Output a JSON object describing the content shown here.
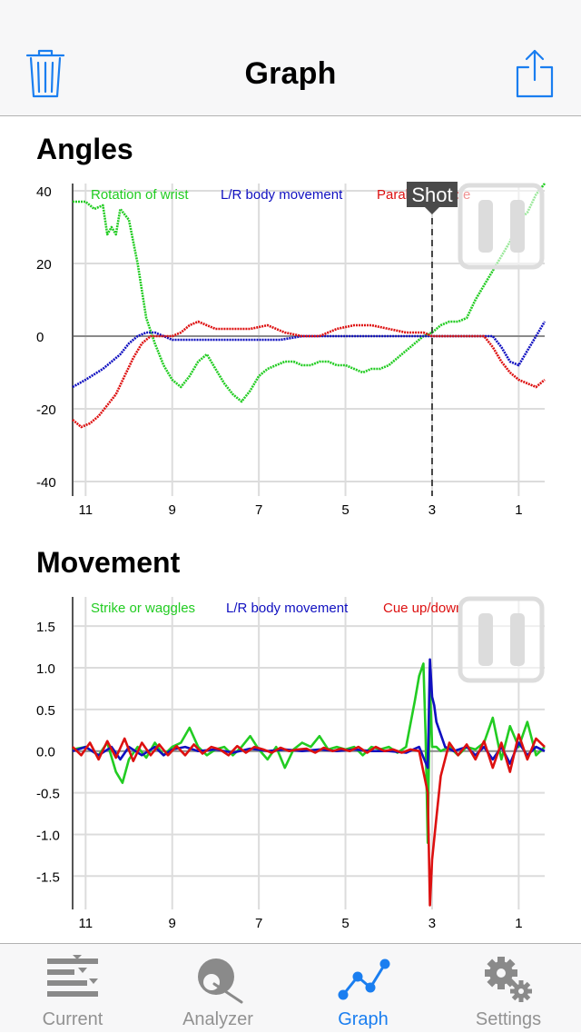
{
  "nav": {
    "title": "Graph",
    "left_icon": "trash-icon",
    "right_icon": "share-icon"
  },
  "sections": {
    "angles_title": "Angles",
    "movement_title": "Movement"
  },
  "colors": {
    "accent": "#1a7ef0",
    "green": "#22cc22",
    "blue": "#1010c0",
    "red": "#dd1010",
    "grid": "#dcdcdc",
    "axis": "#555555"
  },
  "shot_marker": {
    "label": "Shot",
    "x": 3
  },
  "chart_data": [
    {
      "type": "line",
      "title": "Angles",
      "xlim": [
        11.3,
        0.4
      ],
      "ylim": [
        -44,
        42
      ],
      "x_ticks": [
        "11",
        "9",
        "7",
        "5",
        "3",
        "1"
      ],
      "y_ticks": [
        "40",
        "20",
        "0",
        "-20",
        "-40"
      ],
      "grid": true,
      "legend_position": "top",
      "series": [
        {
          "name": "Rotation of wrist",
          "color": "#22cc22",
          "x": [
            11.3,
            11.0,
            10.8,
            10.6,
            10.5,
            10.4,
            10.3,
            10.2,
            10.0,
            9.8,
            9.6,
            9.4,
            9.2,
            9.0,
            8.8,
            8.6,
            8.4,
            8.2,
            8.0,
            7.8,
            7.6,
            7.4,
            7.2,
            7.0,
            6.8,
            6.6,
            6.4,
            6.2,
            6.0,
            5.8,
            5.6,
            5.4,
            5.2,
            5.0,
            4.8,
            4.6,
            4.4,
            4.2,
            4.0,
            3.8,
            3.6,
            3.4,
            3.2,
            3.0,
            2.8,
            2.6,
            2.4,
            2.2,
            2.0,
            1.8,
            1.6,
            1.4,
            1.2,
            1.0,
            0.8,
            0.6,
            0.4
          ],
          "y": [
            37,
            37,
            35,
            36,
            28,
            30,
            28,
            35,
            32,
            20,
            5,
            -2,
            -8,
            -12,
            -14,
            -11,
            -7,
            -5,
            -9,
            -13,
            -16,
            -18,
            -15,
            -11,
            -9,
            -8,
            -7,
            -7,
            -8,
            -8,
            -7,
            -7,
            -8,
            -8,
            -9,
            -10,
            -9,
            -9,
            -8,
            -6,
            -4,
            -2,
            0,
            1,
            3,
            4,
            4,
            5,
            10,
            14,
            18,
            22,
            26,
            32,
            34,
            39,
            42
          ]
        },
        {
          "name": "L/R body movement",
          "color": "#1010c0",
          "x": [
            11.3,
            11.0,
            10.6,
            10.2,
            10.0,
            9.8,
            9.6,
            9.4,
            9.2,
            9.0,
            8.5,
            8.0,
            7.5,
            7.0,
            6.5,
            6.0,
            5.5,
            5.0,
            4.5,
            4.0,
            3.5,
            3.0,
            2.8,
            2.6,
            2.4,
            2.2,
            2.0,
            1.8,
            1.6,
            1.4,
            1.2,
            1.0,
            0.8,
            0.6,
            0.4
          ],
          "y": [
            -14,
            -12,
            -9,
            -5,
            -2,
            0,
            1,
            1,
            0,
            -1,
            -1,
            -1,
            -1,
            -1,
            -1,
            0,
            0,
            0,
            0,
            0,
            0,
            0,
            0,
            0,
            0,
            0,
            0,
            0,
            0,
            -3,
            -7,
            -8,
            -4,
            0,
            4
          ]
        },
        {
          "name": "Parallel to table",
          "color": "#dd1010",
          "x": [
            11.3,
            11.1,
            10.9,
            10.7,
            10.5,
            10.3,
            10.1,
            9.9,
            9.7,
            9.5,
            9.3,
            9.1,
            9.0,
            8.8,
            8.6,
            8.4,
            8.0,
            7.6,
            7.2,
            6.8,
            6.4,
            6.0,
            5.6,
            5.2,
            4.8,
            4.4,
            4.0,
            3.6,
            3.2,
            3.0,
            2.6,
            2.2,
            1.8,
            1.6,
            1.4,
            1.2,
            1.0,
            0.8,
            0.6,
            0.4
          ],
          "y": [
            -23,
            -25,
            -24,
            -22,
            -19,
            -16,
            -11,
            -6,
            -2,
            0,
            0,
            0,
            0,
            1,
            3,
            4,
            2,
            2,
            2,
            3,
            1,
            0,
            0,
            2,
            3,
            3,
            2,
            1,
            1,
            0,
            0,
            0,
            0,
            -3,
            -7,
            -10,
            -12,
            -13,
            -14,
            -12
          ]
        }
      ]
    },
    {
      "type": "line",
      "title": "Movement",
      "xlim": [
        11.3,
        0.4
      ],
      "ylim": [
        -1.9,
        1.85
      ],
      "x_ticks": [
        "11",
        "9",
        "7",
        "5",
        "3",
        "1"
      ],
      "y_ticks": [
        "1.5",
        "1.0",
        "0.5",
        "0.0",
        "-0.5",
        "-1.0",
        "-1.5"
      ],
      "grid": true,
      "legend_position": "top",
      "series": [
        {
          "name": "Strike or waggles",
          "color": "#22cc22",
          "x": [
            11.3,
            11.0,
            10.7,
            10.5,
            10.3,
            10.15,
            10.0,
            9.8,
            9.6,
            9.4,
            9.2,
            9.0,
            8.8,
            8.6,
            8.4,
            8.2,
            8.0,
            7.8,
            7.6,
            7.4,
            7.2,
            7.0,
            6.8,
            6.6,
            6.4,
            6.2,
            6.0,
            5.8,
            5.6,
            5.4,
            5.2,
            5.0,
            4.8,
            4.6,
            4.4,
            4.2,
            4.0,
            3.8,
            3.6,
            3.4,
            3.3,
            3.2,
            3.15,
            3.1,
            3.05,
            3.0,
            2.9,
            2.8,
            2.6,
            2.4,
            2.2,
            2.0,
            1.8,
            1.6,
            1.4,
            1.2,
            1.0,
            0.8,
            0.6,
            0.4
          ],
          "y": [
            0.02,
            0.05,
            -0.05,
            0.1,
            -0.25,
            -0.38,
            -0.1,
            0.05,
            -0.08,
            0.1,
            -0.05,
            0.05,
            0.1,
            0.28,
            0.05,
            -0.05,
            0.02,
            0.05,
            -0.05,
            0.05,
            0.18,
            0.02,
            -0.1,
            0.05,
            -0.2,
            0.02,
            0.1,
            0.05,
            0.18,
            0.02,
            0.05,
            0.02,
            0.05,
            -0.05,
            0.05,
            0.02,
            0.05,
            -0.02,
            0.05,
            0.6,
            0.9,
            1.05,
            0.2,
            -1.1,
            0.8,
            0.05,
            0.05,
            0.0,
            0.05,
            -0.05,
            0.05,
            0.02,
            0.1,
            0.4,
            -0.1,
            0.3,
            0.05,
            0.35,
            -0.05,
            0.05
          ]
        },
        {
          "name": "L/R body movement",
          "color": "#1010c0",
          "x": [
            11.3,
            11.0,
            10.7,
            10.4,
            10.2,
            10.0,
            9.7,
            9.4,
            9.2,
            9.0,
            8.7,
            8.4,
            8.0,
            7.6,
            7.2,
            6.8,
            6.4,
            6.0,
            5.6,
            5.2,
            4.8,
            4.4,
            4.0,
            3.6,
            3.3,
            3.1,
            3.05,
            3.0,
            2.95,
            2.9,
            2.7,
            2.5,
            2.2,
            2.0,
            1.8,
            1.6,
            1.4,
            1.2,
            1.0,
            0.8,
            0.6,
            0.4
          ],
          "y": [
            0.0,
            0.05,
            -0.05,
            0.05,
            -0.1,
            0.05,
            -0.05,
            0.05,
            -0.05,
            0.02,
            0.05,
            0.0,
            0.02,
            -0.02,
            0.03,
            0.0,
            0.02,
            0.0,
            0.02,
            0.0,
            0.02,
            0.0,
            0.0,
            -0.02,
            0.05,
            -0.2,
            1.1,
            0.65,
            0.55,
            0.35,
            0.05,
            0.0,
            0.05,
            -0.05,
            0.05,
            -0.1,
            0.05,
            -0.15,
            0.1,
            -0.05,
            0.05,
            0.0
          ]
        },
        {
          "name": "Cue up/down",
          "color": "#dd1010",
          "x": [
            11.3,
            11.1,
            10.9,
            10.7,
            10.5,
            10.3,
            10.1,
            9.9,
            9.7,
            9.5,
            9.3,
            9.1,
            8.9,
            8.7,
            8.5,
            8.3,
            8.1,
            7.9,
            7.7,
            7.5,
            7.3,
            7.1,
            6.9,
            6.7,
            6.5,
            6.3,
            6.1,
            5.9,
            5.7,
            5.5,
            5.3,
            5.1,
            4.9,
            4.7,
            4.5,
            4.3,
            4.1,
            3.9,
            3.7,
            3.5,
            3.3,
            3.1,
            3.05,
            3.0,
            2.9,
            2.8,
            2.6,
            2.4,
            2.2,
            2.0,
            1.8,
            1.6,
            1.4,
            1.2,
            1.0,
            0.8,
            0.6,
            0.4
          ],
          "y": [
            0.05,
            -0.05,
            0.1,
            -0.1,
            0.12,
            -0.08,
            0.15,
            -0.12,
            0.1,
            -0.05,
            0.08,
            -0.05,
            0.06,
            -0.05,
            0.08,
            -0.03,
            0.05,
            0.02,
            -0.05,
            0.06,
            -0.02,
            0.05,
            0.02,
            -0.02,
            0.04,
            0.0,
            0.02,
            0.03,
            -0.02,
            0.04,
            0.0,
            0.03,
            0.0,
            0.05,
            -0.02,
            0.05,
            0.0,
            0.02,
            -0.02,
            0.02,
            0.0,
            -0.5,
            -1.85,
            -1.3,
            -0.8,
            -0.3,
            0.1,
            -0.05,
            0.08,
            -0.1,
            0.12,
            -0.2,
            0.1,
            -0.25,
            0.2,
            -0.1,
            0.15,
            0.05
          ]
        }
      ]
    }
  ],
  "tabbar": {
    "tabs": [
      {
        "label": "Current",
        "icon": "timeline-bars-icon",
        "active": false
      },
      {
        "label": "Analyzer",
        "icon": "cue-ball-icon",
        "active": false
      },
      {
        "label": "Graph",
        "icon": "graph-line-icon",
        "active": true
      },
      {
        "label": "Settings",
        "icon": "gear-icon",
        "active": false
      }
    ]
  }
}
